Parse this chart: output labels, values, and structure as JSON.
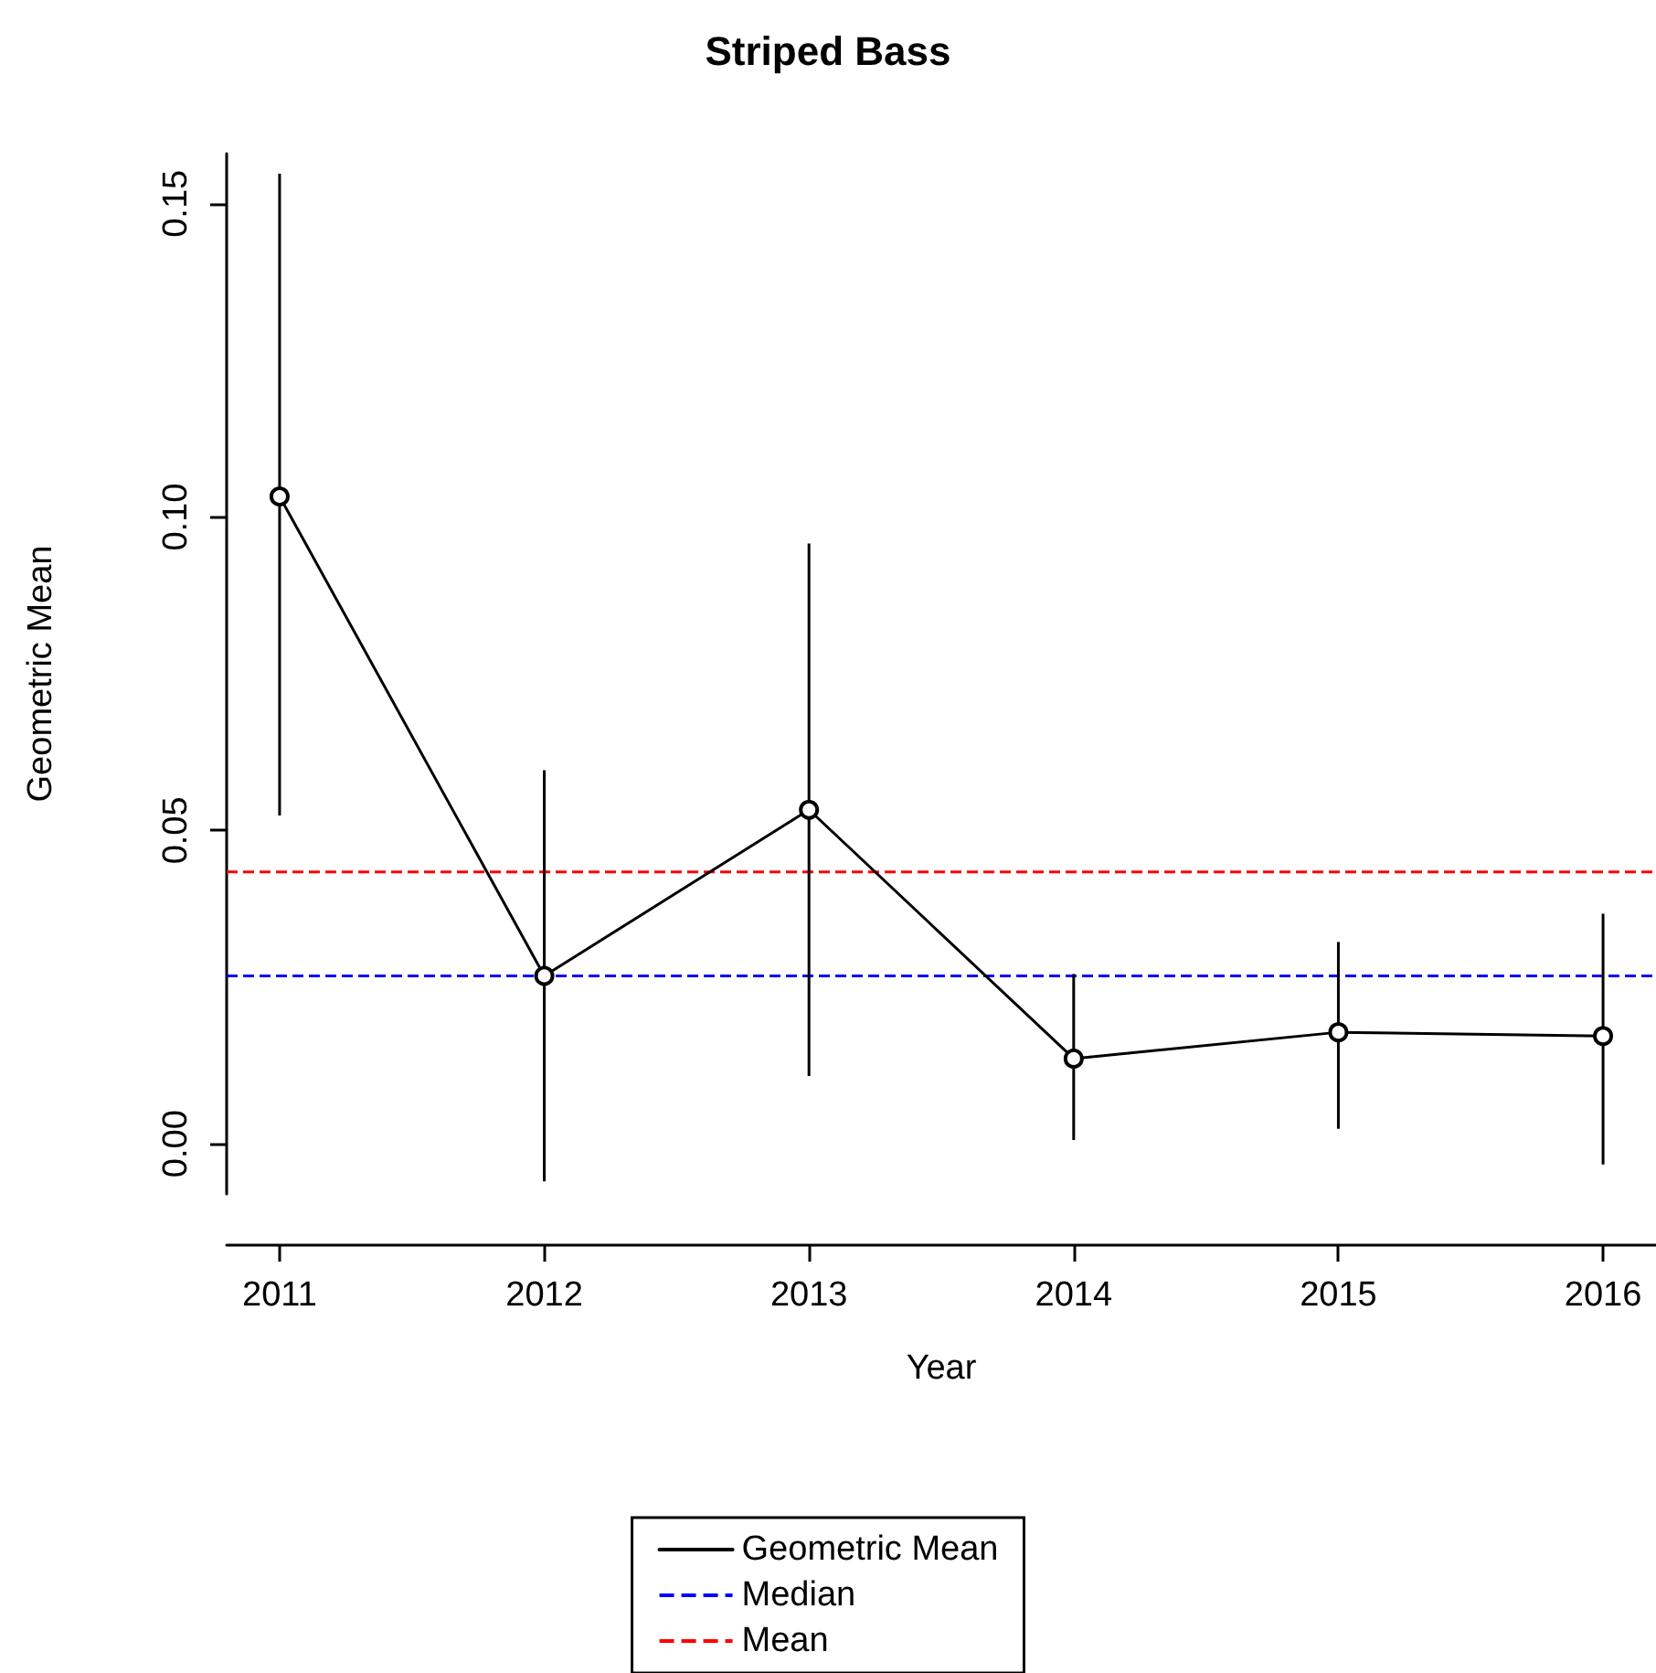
{
  "chart_data": {
    "type": "line",
    "title": "Striped Bass",
    "xlabel": "Year",
    "ylabel": "Geometric Mean",
    "x": [
      2011,
      2012,
      2013,
      2014,
      2015,
      2016
    ],
    "series": [
      {
        "name": "Geometric Mean",
        "color": "#000000",
        "values": [
          0.1033,
          0.0268,
          0.0533,
          0.0136,
          0.0178,
          0.0172
        ],
        "errors": [
          [
            0.0524,
            0.1548
          ],
          [
            -0.006,
            0.0596
          ],
          [
            0.0108,
            0.0958
          ],
          [
            0.0006,
            0.0271
          ],
          [
            0.0024,
            0.0322
          ],
          [
            -0.0033,
            0.0367
          ]
        ]
      }
    ],
    "ref_lines": [
      {
        "axis": "y",
        "value": 0.0268,
        "label": "Median",
        "color": "#0000ff",
        "line_style": "dashed"
      },
      {
        "axis": "y",
        "value": 0.0434,
        "label": "Mean",
        "color": "#ff0000",
        "line_style": "dashed"
      }
    ],
    "xlim": [
      2010.8,
      2016.2
    ],
    "xticks": [
      2011,
      2012,
      2013,
      2014,
      2015,
      2016
    ],
    "ylim": [
      -0.008,
      0.158
    ],
    "yticks": [
      {
        "value": 0,
        "label": "0.00"
      },
      {
        "value": 0.05,
        "label": "0.05"
      },
      {
        "value": 0.1,
        "label": "0.10"
      },
      {
        "value": 0.15,
        "label": "0.15"
      }
    ],
    "marker": "circle",
    "line_style": "solid",
    "grid": false,
    "legend": "bottom"
  }
}
